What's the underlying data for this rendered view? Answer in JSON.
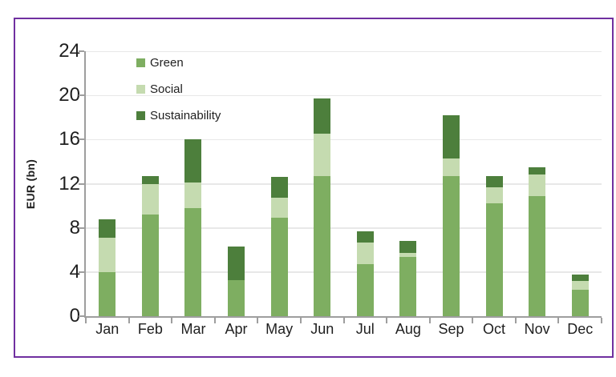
{
  "frame": {
    "border_color": "#7030a0",
    "background": "#ffffff"
  },
  "colors": {
    "gridline": "#e8e8e8",
    "axis": "#9e9e9e",
    "text": "#1f1f1f",
    "green_series": "#7eae61",
    "social_series": "#c5dbb0",
    "sustainability_series": "#4d7f3c"
  },
  "chart_data": {
    "type": "bar",
    "stacked": true,
    "title": "",
    "xlabel": "",
    "ylabel": "EUR (bn)",
    "ylim": [
      0,
      24
    ],
    "yticks": [
      0,
      4,
      8,
      12,
      16,
      20,
      24
    ],
    "grid": "horizontal",
    "legend_position": "top-left-inside",
    "categories": [
      "Jan",
      "Feb",
      "Mar",
      "Apr",
      "May",
      "Jun",
      "Jul",
      "Aug",
      "Sep",
      "Oct",
      "Nov",
      "Dec"
    ],
    "series": [
      {
        "name": "Green",
        "color": "#7eae61",
        "values": [
          4.0,
          9.2,
          9.8,
          3.3,
          8.9,
          12.7,
          4.7,
          5.4,
          12.7,
          10.2,
          10.9,
          2.4
        ]
      },
      {
        "name": "Social",
        "color": "#c5dbb0",
        "values": [
          3.1,
          2.8,
          2.3,
          0.0,
          1.8,
          3.8,
          2.0,
          0.3,
          1.6,
          1.5,
          1.9,
          0.8
        ]
      },
      {
        "name": "Sustainability",
        "color": "#4d7f3c",
        "values": [
          1.7,
          0.7,
          3.9,
          3.0,
          1.9,
          3.2,
          1.0,
          1.1,
          3.9,
          1.0,
          0.7,
          0.6
        ]
      }
    ],
    "totals": [
      8.8,
      12.7,
      16.0,
      6.3,
      12.6,
      19.7,
      7.7,
      6.8,
      18.2,
      12.7,
      13.5,
      3.8
    ]
  }
}
